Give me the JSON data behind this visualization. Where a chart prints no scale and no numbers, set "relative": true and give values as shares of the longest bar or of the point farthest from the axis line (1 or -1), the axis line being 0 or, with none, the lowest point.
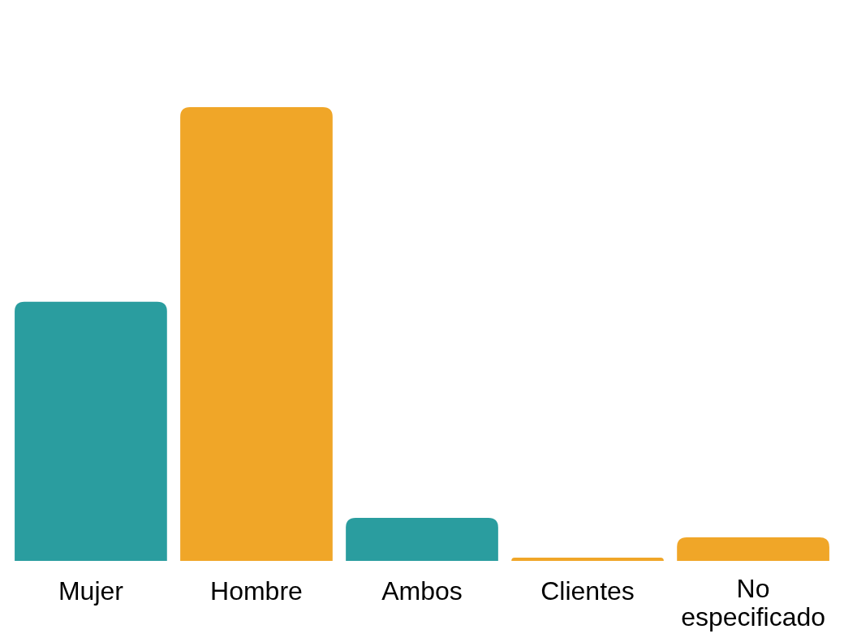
{
  "chart_data": {
    "type": "bar",
    "relative": true,
    "categories": [
      "Mujer",
      "Hombre",
      "Ambos",
      "Clientes",
      "No especificado"
    ],
    "values": [
      0.571,
      1,
      0.095,
      0.007,
      0.052
    ],
    "colors": [
      "#2a9d9f",
      "#f0a628",
      "#2a9d9f",
      "#f0a628",
      "#f0a628"
    ]
  }
}
